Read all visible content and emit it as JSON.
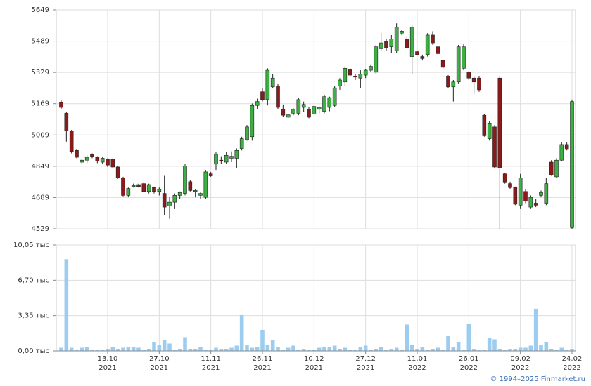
{
  "chart_data": [
    {
      "type": "candlestick",
      "open": [
        5175,
        5120,
        5030,
        4930,
        4870,
        4880,
        4910,
        4895,
        4870,
        4885,
        4885,
        4845,
        4790,
        4700,
        4745,
        4755,
        4760,
        4720,
        4740,
        4720,
        4710,
        4645,
        4665,
        4700,
        4710,
        4770,
        4720,
        4700,
        4690,
        4810,
        4860,
        4880,
        4870,
        4890,
        4890,
        4940,
        4985,
        5000,
        5160,
        5230,
        5190,
        5255,
        5260,
        5140,
        5100,
        5120,
        5120,
        5150,
        5140,
        5120,
        5140,
        5130,
        5150,
        5160,
        5260,
        5280,
        5345,
        5310,
        5300,
        5315,
        5340,
        5330,
        5450,
        5490,
        5460,
        5440,
        5530,
        5500,
        5410,
        5435,
        5410,
        5420,
        5520,
        5460,
        5390,
        5310,
        5255,
        5280,
        5350,
        5330,
        5300,
        5300,
        5110,
        4990,
        5050,
        5300,
        4810,
        4760,
        4740,
        4650,
        4720,
        4640,
        4660,
        4700,
        4660,
        4870,
        4795,
        4880,
        4960,
        4535
      ],
      "high": [
        5185,
        5125,
        5035,
        4935,
        4885,
        4905,
        4915,
        4900,
        4895,
        4890,
        4890,
        4850,
        4795,
        4740,
        4760,
        4760,
        4765,
        4760,
        4745,
        4740,
        4800,
        4690,
        4710,
        4720,
        4860,
        4780,
        4730,
        4715,
        4830,
        4820,
        4920,
        4900,
        4920,
        4925,
        4940,
        5000,
        5060,
        5170,
        5195,
        5250,
        5350,
        5320,
        5270,
        5165,
        5115,
        5145,
        5200,
        5180,
        5150,
        5160,
        5155,
        5215,
        5205,
        5260,
        5300,
        5360,
        5350,
        5320,
        5340,
        5345,
        5370,
        5470,
        5530,
        5500,
        5520,
        5580,
        5545,
        5510,
        5570,
        5440,
        5420,
        5530,
        5540,
        5465,
        5395,
        5315,
        5290,
        5470,
        5475,
        5335,
        5310,
        5310,
        5115,
        5080,
        5060,
        5310,
        4815,
        4770,
        4745,
        4810,
        4730,
        4700,
        4680,
        4725,
        4790,
        4880,
        4890,
        4970,
        4970,
        5190
      ],
      "low": [
        5140,
        4975,
        4915,
        4890,
        4860,
        4865,
        4890,
        4865,
        4860,
        4845,
        4840,
        4785,
        4695,
        4690,
        4740,
        4740,
        4715,
        4710,
        4710,
        4700,
        4600,
        4580,
        4630,
        4680,
        4700,
        4720,
        4690,
        4680,
        4680,
        4795,
        4830,
        4860,
        4860,
        4870,
        4840,
        4930,
        4980,
        4980,
        5140,
        5180,
        5160,
        5250,
        5140,
        5100,
        5095,
        5110,
        5110,
        5125,
        5095,
        5115,
        5120,
        5120,
        5130,
        5150,
        5240,
        5260,
        5310,
        5290,
        5250,
        5300,
        5330,
        5320,
        5440,
        5440,
        5430,
        5430,
        5520,
        5450,
        5320,
        5415,
        5390,
        5410,
        5470,
        5420,
        5350,
        5250,
        5180,
        5270,
        5340,
        5290,
        5220,
        5230,
        5000,
        4980,
        4840,
        4529,
        4760,
        4730,
        4650,
        4630,
        4660,
        4630,
        4640,
        4690,
        4650,
        4800,
        4790,
        4875,
        4930,
        4529
      ],
      "close": [
        5150,
        5030,
        4925,
        4895,
        4880,
        4895,
        4900,
        4875,
        4890,
        4855,
        4845,
        4790,
        4700,
        4735,
        4750,
        4745,
        4720,
        4755,
        4720,
        4730,
        4640,
        4665,
        4700,
        4715,
        4850,
        4725,
        4725,
        4710,
        4820,
        4800,
        4910,
        4875,
        4905,
        4900,
        4930,
        4990,
        5050,
        5160,
        5180,
        5190,
        5340,
        5300,
        5150,
        5110,
        5112,
        5140,
        5190,
        5165,
        5100,
        5155,
        5150,
        5205,
        5200,
        5250,
        5290,
        5350,
        5315,
        5305,
        5320,
        5340,
        5360,
        5460,
        5480,
        5455,
        5500,
        5560,
        5540,
        5455,
        5560,
        5420,
        5400,
        5520,
        5480,
        5425,
        5355,
        5255,
        5280,
        5460,
        5460,
        5300,
        5280,
        5240,
        5005,
        5070,
        4845,
        4840,
        4765,
        4740,
        4655,
        4790,
        4670,
        4690,
        4650,
        4715,
        4760,
        4805,
        4880,
        4960,
        4935,
        5180
      ],
      "up_color": "#3cb043",
      "down_color": "#8b1a1a",
      "ylim": [
        4529,
        5649
      ],
      "yticks": [
        4529,
        4689,
        4849,
        5009,
        5169,
        5329,
        5489,
        5649
      ],
      "grid": true
    },
    {
      "type": "bar",
      "categories": [
        null,
        null,
        null,
        null,
        null,
        null,
        null,
        null,
        null,
        "13.10\n2021",
        null,
        null,
        null,
        null,
        null,
        null,
        null,
        null,
        null,
        "27.10\n2021",
        null,
        null,
        null,
        null,
        null,
        null,
        null,
        null,
        null,
        "11.11\n2021",
        null,
        null,
        null,
        null,
        null,
        null,
        null,
        null,
        null,
        "26.11\n2021",
        null,
        null,
        null,
        null,
        null,
        null,
        null,
        null,
        null,
        "10.12\n2021",
        null,
        null,
        null,
        null,
        null,
        null,
        null,
        null,
        null,
        "27.12\n2021",
        null,
        null,
        null,
        null,
        null,
        null,
        null,
        null,
        null,
        "11.01\n2022",
        null,
        null,
        null,
        null,
        null,
        null,
        null,
        null,
        null,
        "26.01\n2022",
        null,
        null,
        null,
        null,
        null,
        null,
        null,
        null,
        null,
        "09.02\n2022",
        null,
        null,
        null,
        null,
        null,
        null,
        null,
        null,
        null,
        "24.02\n2022"
      ],
      "values": [
        0.3,
        8.7,
        0.3,
        0.1,
        0.3,
        0.4,
        0.1,
        0.1,
        0.1,
        0.2,
        0.4,
        0.2,
        0.3,
        0.4,
        0.4,
        0.3,
        0.1,
        0.2,
        0.8,
        0.6,
        1.0,
        0.7,
        0.1,
        0.2,
        1.3,
        0.2,
        0.2,
        0.4,
        0.1,
        0.1,
        0.3,
        0.2,
        0.2,
        0.3,
        0.5,
        3.4,
        0.6,
        0.3,
        0.4,
        2.0,
        0.6,
        1.0,
        0.4,
        0.1,
        0.3,
        0.5,
        0.1,
        0.2,
        0.1,
        0.1,
        0.3,
        0.4,
        0.4,
        0.5,
        0.2,
        0.3,
        0.1,
        0.1,
        0.4,
        0.5,
        0.1,
        0.2,
        0.4,
        0.1,
        0.2,
        0.3,
        0.1,
        2.5,
        0.6,
        0.2,
        0.4,
        0.1,
        0.2,
        0.3,
        0.1,
        1.4,
        0.4,
        0.8,
        0.1,
        2.6,
        0.2,
        0.1,
        0.1,
        1.2,
        1.1,
        0.2,
        0.1,
        0.2,
        0.2,
        0.3,
        0.3,
        0.5,
        4.0,
        0.6,
        0.8,
        0.2,
        0.1,
        0.3,
        0.1,
        0.2
      ],
      "color": "#9ccdf0",
      "ylim": [
        0,
        10.05
      ],
      "yticks": [
        {
          "value": 0,
          "label": "0,00 тыс"
        },
        {
          "value": 3.35,
          "label": "3,35 тыс"
        },
        {
          "value": 6.7,
          "label": "6,70 тыс"
        },
        {
          "value": 10.05,
          "label": "10,05 тыс"
        }
      ],
      "grid": true
    }
  ],
  "credit": "© 1994–2025 Finmarket.ru"
}
